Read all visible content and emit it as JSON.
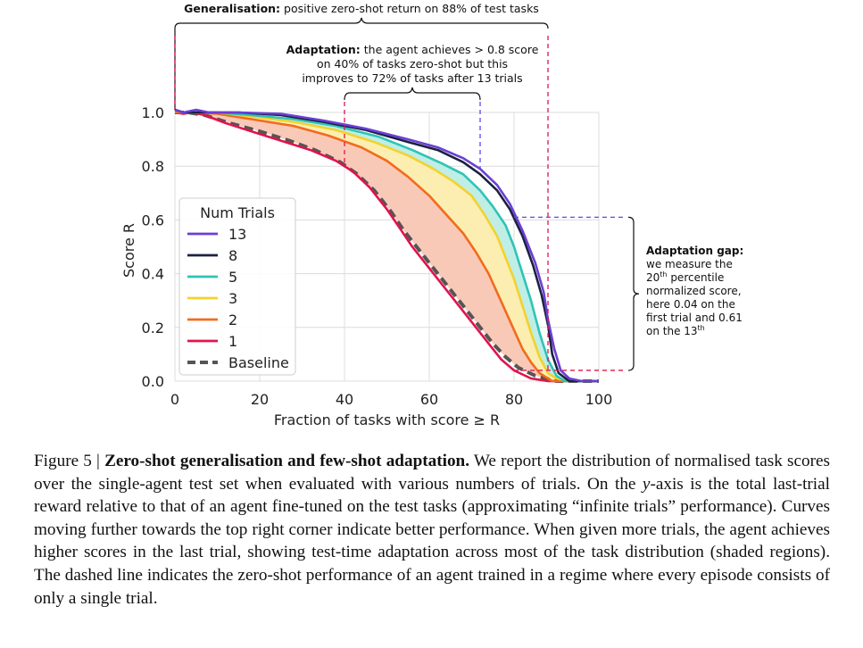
{
  "chart_data": {
    "type": "line",
    "xlabel": "Fraction of tasks with score ≥ R",
    "ylabel": "Score R",
    "xlim": [
      0,
      100
    ],
    "ylim": [
      0,
      1.0
    ],
    "x_ticks": [
      "0",
      "20",
      "40",
      "60",
      "80",
      "100"
    ],
    "y_ticks": [
      "0.0",
      "0.2",
      "0.4",
      "0.6",
      "0.8",
      "1.0"
    ],
    "grid": true,
    "legend": {
      "title": "Num Trials",
      "position": "center-left"
    },
    "series": [
      {
        "name": "13",
        "color": "#6b3fd4",
        "dashed": false,
        "points": [
          [
            0,
            1.01
          ],
          [
            2,
            1.0
          ],
          [
            5,
            1.01
          ],
          [
            8,
            1.0
          ],
          [
            15,
            1.0
          ],
          [
            25,
            0.995
          ],
          [
            35,
            0.97
          ],
          [
            45,
            0.94
          ],
          [
            55,
            0.9
          ],
          [
            62,
            0.87
          ],
          [
            68,
            0.83
          ],
          [
            72,
            0.79
          ],
          [
            76,
            0.73
          ],
          [
            79,
            0.66
          ],
          [
            82,
            0.56
          ],
          [
            85,
            0.44
          ],
          [
            87,
            0.33
          ],
          [
            88,
            0.23
          ],
          [
            89.5,
            0.12
          ],
          [
            91,
            0.04
          ],
          [
            93,
            0.01
          ],
          [
            96,
            0.0
          ],
          [
            100,
            0.0
          ]
        ]
      },
      {
        "name": "8",
        "color": "#1a2140",
        "dashed": false,
        "points": [
          [
            0,
            1.01
          ],
          [
            2,
            1.0
          ],
          [
            5,
            1.0
          ],
          [
            8,
            1.0
          ],
          [
            15,
            1.0
          ],
          [
            25,
            0.99
          ],
          [
            35,
            0.965
          ],
          [
            45,
            0.935
          ],
          [
            55,
            0.89
          ],
          [
            62,
            0.86
          ],
          [
            68,
            0.815
          ],
          [
            72,
            0.77
          ],
          [
            76,
            0.71
          ],
          [
            79,
            0.64
          ],
          [
            82,
            0.54
          ],
          [
            84.5,
            0.43
          ],
          [
            86.5,
            0.32
          ],
          [
            88,
            0.21
          ],
          [
            89,
            0.1
          ],
          [
            90.5,
            0.03
          ],
          [
            93,
            0.0
          ],
          [
            100,
            0.0
          ]
        ]
      },
      {
        "name": "5",
        "color": "#2ec4b6",
        "dashed": false,
        "points": [
          [
            0,
            1.01
          ],
          [
            2,
            1.0
          ],
          [
            5,
            1.0
          ],
          [
            10,
            1.0
          ],
          [
            18,
            0.99
          ],
          [
            28,
            0.975
          ],
          [
            38,
            0.95
          ],
          [
            48,
            0.91
          ],
          [
            56,
            0.86
          ],
          [
            63,
            0.81
          ],
          [
            68,
            0.77
          ],
          [
            72,
            0.71
          ],
          [
            75,
            0.65
          ],
          [
            78,
            0.58
          ],
          [
            80,
            0.5
          ],
          [
            82,
            0.4
          ],
          [
            84,
            0.3
          ],
          [
            86,
            0.18
          ],
          [
            88,
            0.08
          ],
          [
            90,
            0.02
          ],
          [
            92,
            0.0
          ],
          [
            100,
            0.0
          ]
        ]
      },
      {
        "name": "3",
        "color": "#f2d22e",
        "dashed": false,
        "points": [
          [
            0,
            1.01
          ],
          [
            2,
            1.0
          ],
          [
            5,
            1.0
          ],
          [
            10,
            1.0
          ],
          [
            18,
            0.985
          ],
          [
            28,
            0.965
          ],
          [
            38,
            0.935
          ],
          [
            47,
            0.89
          ],
          [
            55,
            0.84
          ],
          [
            61,
            0.79
          ],
          [
            66,
            0.74
          ],
          [
            70,
            0.69
          ],
          [
            73,
            0.62
          ],
          [
            76,
            0.54
          ],
          [
            78,
            0.46
          ],
          [
            80,
            0.38
          ],
          [
            82,
            0.28
          ],
          [
            84,
            0.18
          ],
          [
            86,
            0.09
          ],
          [
            88,
            0.03
          ],
          [
            90,
            0.01
          ],
          [
            93,
            0.0
          ],
          [
            100,
            0.0
          ]
        ]
      },
      {
        "name": "2",
        "color": "#f26b1d",
        "dashed": false,
        "points": [
          [
            0,
            1.0
          ],
          [
            2,
            1.0
          ],
          [
            5,
            1.0
          ],
          [
            10,
            0.995
          ],
          [
            18,
            0.975
          ],
          [
            28,
            0.95
          ],
          [
            36,
            0.915
          ],
          [
            44,
            0.87
          ],
          [
            50,
            0.82
          ],
          [
            55,
            0.76
          ],
          [
            60,
            0.69
          ],
          [
            64,
            0.62
          ],
          [
            68,
            0.55
          ],
          [
            71,
            0.48
          ],
          [
            74,
            0.4
          ],
          [
            76,
            0.33
          ],
          [
            78,
            0.26
          ],
          [
            80,
            0.19
          ],
          [
            82,
            0.12
          ],
          [
            84,
            0.07
          ],
          [
            86,
            0.03
          ],
          [
            89,
            0.0
          ],
          [
            100,
            0.0
          ]
        ]
      },
      {
        "name": "1",
        "color": "#e0144c",
        "dashed": false,
        "points": [
          [
            0,
            1.0
          ],
          [
            2,
            0.995
          ],
          [
            4,
            1.0
          ],
          [
            7,
            0.99
          ],
          [
            12,
            0.96
          ],
          [
            18,
            0.93
          ],
          [
            25,
            0.895
          ],
          [
            32,
            0.86
          ],
          [
            38,
            0.82
          ],
          [
            42,
            0.78
          ],
          [
            46,
            0.72
          ],
          [
            50,
            0.64
          ],
          [
            53,
            0.57
          ],
          [
            56,
            0.5
          ],
          [
            59,
            0.44
          ],
          [
            62,
            0.38
          ],
          [
            65,
            0.32
          ],
          [
            68,
            0.26
          ],
          [
            71,
            0.2
          ],
          [
            74,
            0.14
          ],
          [
            77,
            0.08
          ],
          [
            80,
            0.04
          ],
          [
            84,
            0.01
          ],
          [
            88,
            0.0
          ],
          [
            100,
            0.0
          ]
        ]
      },
      {
        "name": "Baseline",
        "color": "#555555",
        "dashed": true,
        "points": [
          [
            0,
            1.0
          ],
          [
            3,
            1.0
          ],
          [
            7,
            0.99
          ],
          [
            13,
            0.96
          ],
          [
            20,
            0.93
          ],
          [
            27,
            0.895
          ],
          [
            33,
            0.86
          ],
          [
            39,
            0.815
          ],
          [
            43,
            0.77
          ],
          [
            47,
            0.71
          ],
          [
            51,
            0.63
          ],
          [
            54,
            0.56
          ],
          [
            57,
            0.5
          ],
          [
            60,
            0.44
          ],
          [
            63,
            0.38
          ],
          [
            66,
            0.32
          ],
          [
            69,
            0.26
          ],
          [
            72,
            0.2
          ],
          [
            75,
            0.14
          ],
          [
            78,
            0.09
          ],
          [
            81,
            0.05
          ],
          [
            85,
            0.02
          ],
          [
            90,
            0.0
          ],
          [
            100,
            0.0
          ]
        ]
      }
    ]
  },
  "annotations": {
    "generalisation_bold": "Generalisation:",
    "generalisation_text": " positive zero-shot return on 88% of test tasks",
    "adaptation_bold": "Adaptation:",
    "adaptation_line1": " the agent achieves > 0.8 score",
    "adaptation_line2": "on 40% of tasks zero-shot but this",
    "adaptation_line3": "improves to 72% of tasks after 13 trials",
    "gap_title": "Adaptation gap:",
    "gap_line1": "we measure the",
    "gap_line2_pre": "20",
    "gap_line2_sup": "th",
    "gap_line2_post": " percentile",
    "gap_line3": "normalized score,",
    "gap_line4": "here 0.04 on the",
    "gap_line5": "first trial and 0.61",
    "gap_line6_pre": "on the 13",
    "gap_line6_sup": "th"
  },
  "caption": {
    "label": "Figure 5 | ",
    "title": "Zero-shot generalisation and few-shot adaptation.",
    "p1": " We report the distribution of normalised task scores over the single-agent test set when evaluated with various numbers of trials. On the ",
    "yaxis": "y",
    "p2": "-axis is the total last-trial reward relative to that of an agent fine-tuned on the test tasks (approximating “infinite trials” performance). Curves moving further towards the top right corner indicate better performance. When given more trials, the agent achieves higher scores in the last trial, showing test-time adaptation across most of the task distribution (shaded regions). The dashed line indicates the zero-shot performance of an agent trained in a regime where every episode consists of only a single trial."
  },
  "colors": {
    "shade_baseline": "#f9c9b8",
    "shade_teal": "#bfeee6",
    "shade_yellow": "#fbeeb0",
    "annotation_red": "#e0144c",
    "annotation_blue": "#5a4fe0",
    "grid": "#dcdcdc"
  }
}
